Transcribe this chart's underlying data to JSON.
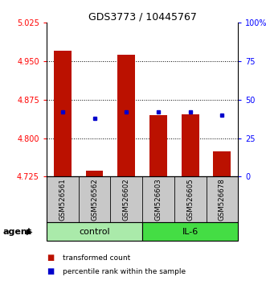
{
  "title": "GDS3773 / 10445767",
  "samples": [
    "GSM526561",
    "GSM526562",
    "GSM526602",
    "GSM526603",
    "GSM526605",
    "GSM526678"
  ],
  "group_labels": [
    "control",
    "IL-6"
  ],
  "group_colors": [
    "#AAEAAA",
    "#44DD44"
  ],
  "red_values": [
    4.97,
    4.737,
    4.963,
    4.845,
    4.847,
    4.775
  ],
  "blue_pct": [
    42,
    38,
    42,
    42,
    42,
    40
  ],
  "y_min": 4.725,
  "y_max": 5.025,
  "y_left_ticks": [
    4.725,
    4.8,
    4.875,
    4.95,
    5.025
  ],
  "y_right_ticks": [
    0,
    25,
    50,
    75,
    100
  ],
  "bar_color": "#BB1100",
  "dot_color": "#0000CC",
  "legend_items": [
    "transformed count",
    "percentile rank within the sample"
  ],
  "xlabel_agent": "agent",
  "bg_color_samples": "#C8C8C8"
}
